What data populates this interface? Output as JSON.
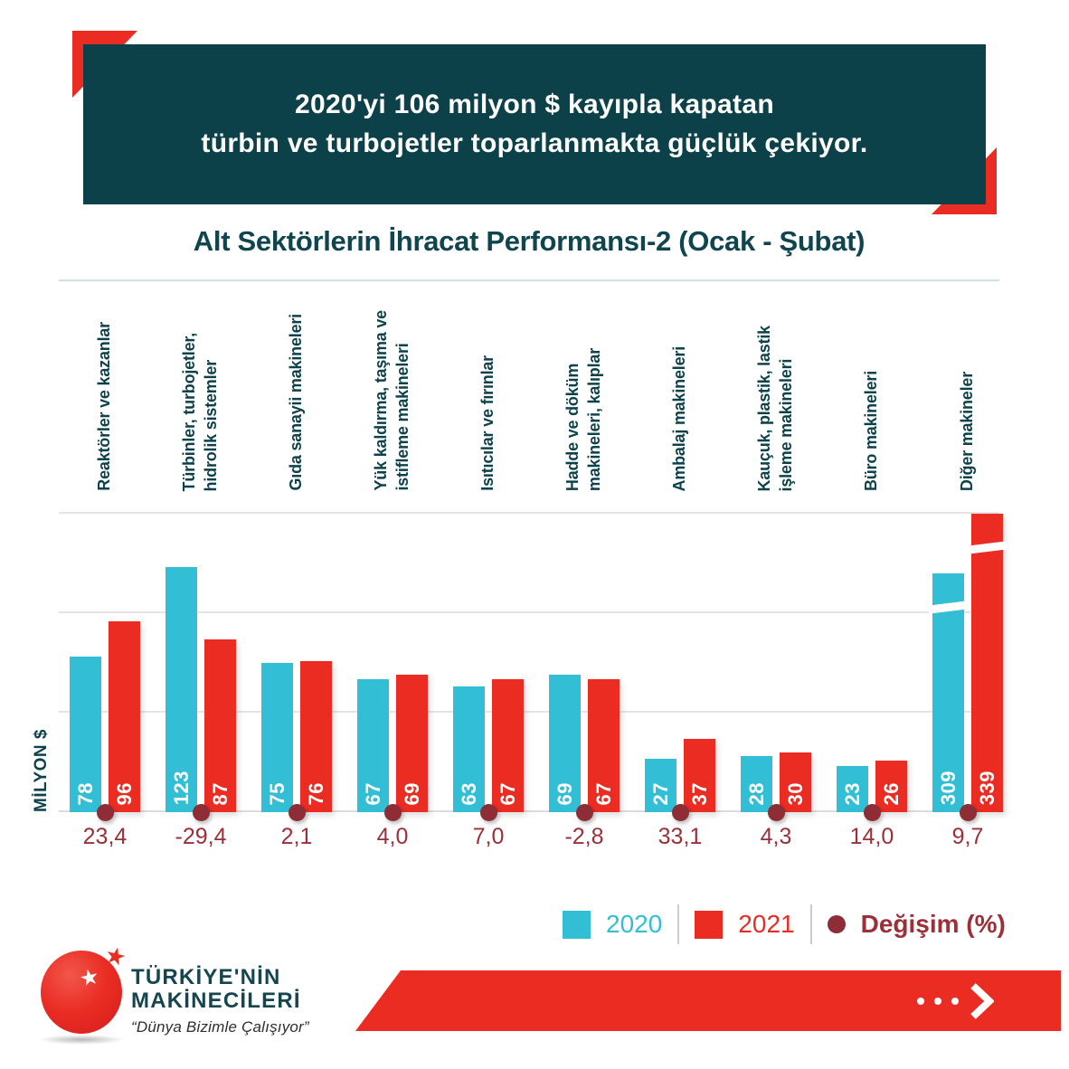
{
  "header": {
    "line1": "2020'yi 106 milyon $ kayıpla kapatan",
    "line2": "türbin ve turbojetler toparlanmakta güçlük çekiyor."
  },
  "chart_title": "Alt Sektörlerin İhracat Performansı-2 (Ocak - Şubat)",
  "y_axis_label": "MİLYON $",
  "legend": {
    "label_2020": "2020",
    "label_2021": "2021",
    "label_change": "Değişim (%)"
  },
  "colors": {
    "red": "#ea2c23",
    "cyan": "#32bed4",
    "dark_teal": "#0d4149",
    "dark_red": "#9c2f38",
    "gridline": "#e4e4e4"
  },
  "chart_data": {
    "type": "bar",
    "title": "Alt Sektörlerin İhracat Performansı-2 (Ocak - Şubat)",
    "ylabel": "MİLYON $",
    "categories": [
      "Reaktörler ve kazanlar",
      "Türbinler, turbojetler,\nhidrolik sistemler",
      "Gıda sanayii makineleri",
      "Yük kaldırma, taşıma ve\nistifleme makineleri",
      "Isıtıcılar ve fırınlar",
      "Hadde ve döküm\nmakineleri, kalıplar",
      "Ambalaj makineleri",
      "Kauçuk, plastik, lastik\nişleme makineleri",
      "Büro makineleri",
      "Diğer makineler"
    ],
    "series": [
      {
        "name": "2020",
        "color": "#32bed4",
        "values": [
          78,
          123,
          75,
          67,
          63,
          69,
          27,
          28,
          23,
          309
        ]
      },
      {
        "name": "2021",
        "color": "#ea2c23",
        "values": [
          96,
          87,
          76,
          69,
          67,
          67,
          37,
          30,
          26,
          339
        ]
      }
    ],
    "change_series": {
      "name": "Değişim (%)",
      "color": "#9c2f38",
      "labels": [
        "23,4",
        "-29,4",
        "2,1",
        "4,0",
        "7,0",
        "-2,8",
        "33,1",
        "4,3",
        "14,0",
        "9,7"
      ]
    },
    "y_gridlines": [
      0,
      50,
      100,
      150
    ],
    "axis_break_on_values_above": 150,
    "grid": true,
    "legend_position": "bottom"
  },
  "logo": {
    "line1": "TÜRKİYE'NİN",
    "line2": "MAKİNECİLERİ",
    "tagline": "“Dünya Bizimle Çalışıyor”"
  }
}
